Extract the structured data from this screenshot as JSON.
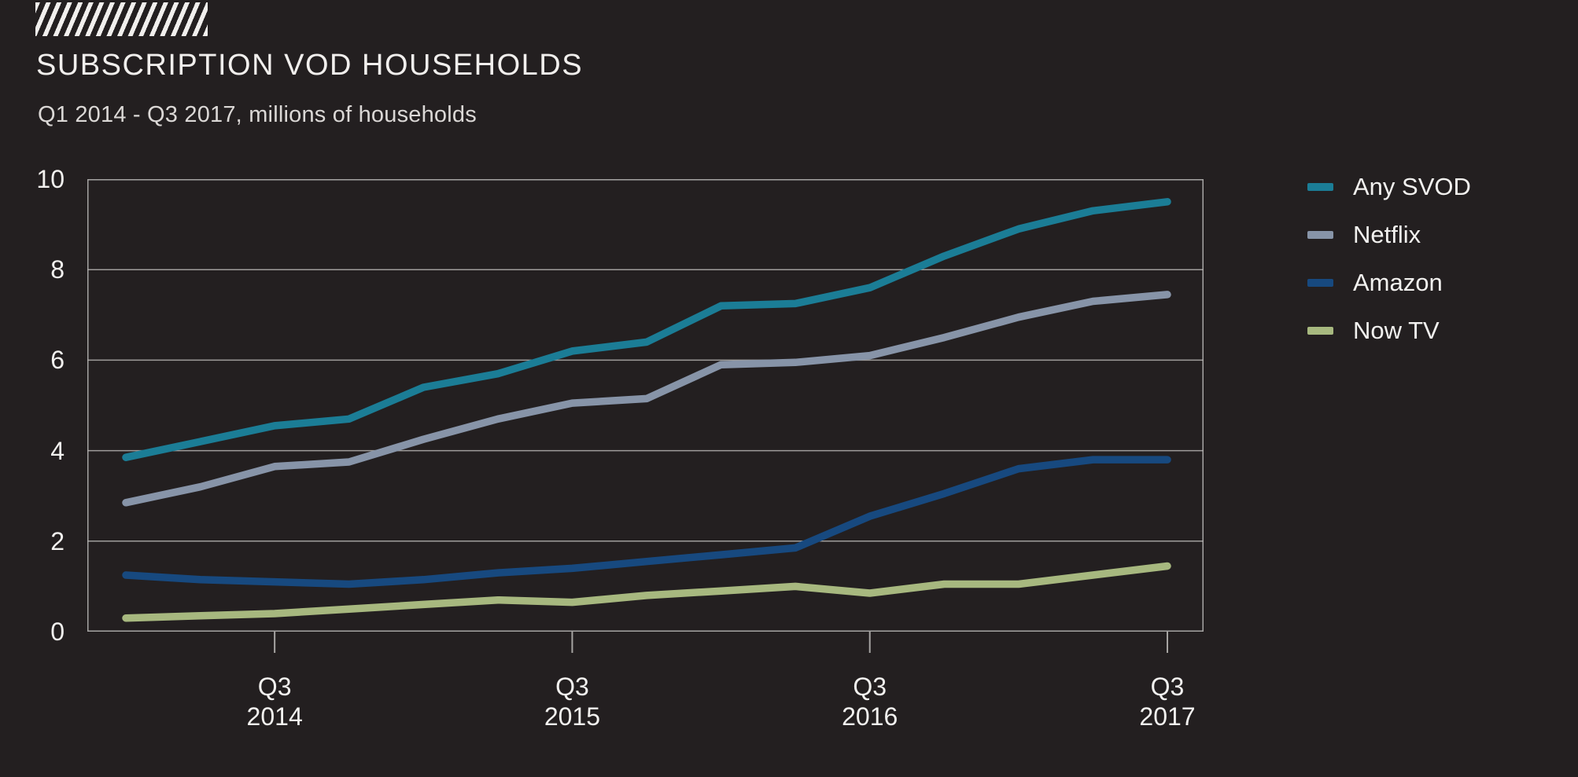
{
  "header": {
    "title": "SUBSCRIPTION VOD HOUSEHOLDS",
    "subtitle": "Q1 2014 - Q3 2017, millions of households"
  },
  "colors": {
    "background": "#231f20",
    "grid": "#b5b3b1",
    "text": "#f2f1ef"
  },
  "chart_data": {
    "type": "line",
    "title": "SUBSCRIPTION VOD HOUSEHOLDS",
    "subtitle": "Q1 2014 - Q3 2017, millions of households",
    "xlabel": "",
    "ylabel": "millions of households",
    "ylim": [
      0,
      10
    ],
    "y_tick_step": 2,
    "grid": "horizontal",
    "legend_position": "right",
    "x_categories": [
      "Q1 2014",
      "Q2 2014",
      "Q3 2014",
      "Q4 2014",
      "Q1 2015",
      "Q2 2015",
      "Q3 2015",
      "Q4 2015",
      "Q1 2016",
      "Q2 2016",
      "Q3 2016",
      "Q4 2016",
      "Q1 2017",
      "Q2 2017",
      "Q3 2017"
    ],
    "x_tick_indices": [
      2,
      6,
      10,
      14
    ],
    "x_tick_labels": [
      {
        "line1": "Q3",
        "line2": "2014"
      },
      {
        "line1": "Q3",
        "line2": "2015"
      },
      {
        "line1": "Q3",
        "line2": "2016"
      },
      {
        "line1": "Q3",
        "line2": "2017"
      }
    ],
    "y_ticks_display": [
      "10",
      "8",
      "6",
      "4",
      "2",
      "0"
    ],
    "series": [
      {
        "name": "Any SVOD",
        "color": "#1b7d96",
        "values": [
          3.85,
          4.2,
          4.55,
          4.7,
          5.4,
          5.7,
          6.2,
          6.4,
          7.2,
          7.25,
          7.6,
          8.3,
          8.9,
          9.3,
          9.5
        ]
      },
      {
        "name": "Netflix",
        "color": "#8794a8",
        "values": [
          2.85,
          3.2,
          3.65,
          3.75,
          4.25,
          4.7,
          5.05,
          5.15,
          5.9,
          5.95,
          6.1,
          6.5,
          6.95,
          7.3,
          7.45
        ]
      },
      {
        "name": "Amazon",
        "color": "#17497f",
        "values": [
          1.25,
          1.15,
          1.1,
          1.05,
          1.15,
          1.3,
          1.4,
          1.55,
          1.7,
          1.85,
          2.55,
          3.05,
          3.6,
          3.8,
          3.8
        ]
      },
      {
        "name": "Now TV",
        "color": "#a7b87f",
        "values": [
          0.3,
          0.35,
          0.4,
          0.5,
          0.6,
          0.7,
          0.65,
          0.8,
          0.9,
          1.0,
          0.85,
          1.05,
          1.05,
          1.25,
          1.45
        ]
      }
    ]
  }
}
